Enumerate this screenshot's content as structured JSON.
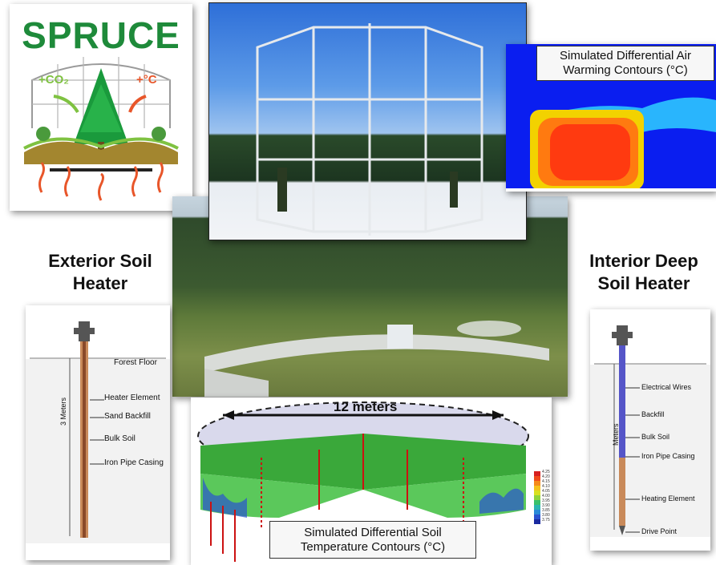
{
  "logo": {
    "title": "SPRUCE",
    "co2_label": "+CO₂",
    "temp_label": "+°C"
  },
  "air_warming": {
    "caption": "Simulated Differential Air Warming Contours (°C)",
    "caption_line1": "Simulated Differential Air",
    "caption_line2": "Warming Contours (°C)"
  },
  "exterior": {
    "heading_line1": "Exterior Soil",
    "heading_line2": "Heater",
    "depth_label": "3 Meters",
    "labels": [
      "Forest Floor",
      "Heater Element",
      "Sand Backfill",
      "Bulk Soil",
      "Iron Pipe Casing"
    ]
  },
  "interior": {
    "heading_line1": "Interior Deep",
    "heading_line2": "Soil Heater",
    "depth_label": "Meters",
    "labels": [
      "Electrical Wires",
      "Backfill",
      "Bulk Soil",
      "Iron Pipe Casing",
      "Heating Element",
      "Drive Point"
    ]
  },
  "soil_sim": {
    "width_label": "12 meters",
    "caption_line1": "Simulated Differential Soil",
    "caption_line2": "Temperature Contours (°C)",
    "scale": [
      "4.25",
      "4.20",
      "4.15",
      "4.10",
      "4.05",
      "4.00",
      "3.95",
      "3.90",
      "3.85",
      "3.80",
      "3.75"
    ]
  },
  "colors": {
    "spruce_green": "#1e8a3a",
    "warm_orange": "#e8562a",
    "air_blue": "#0a1ef0"
  }
}
